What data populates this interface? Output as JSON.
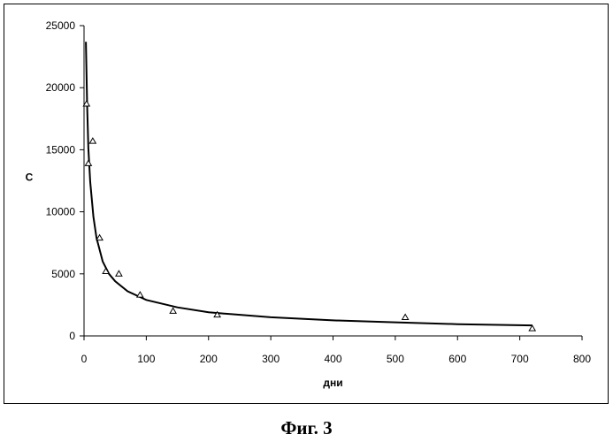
{
  "chart_data": {
    "type": "scatter",
    "xlabel": "дни",
    "ylabel": "С",
    "xlim": [
      0,
      800
    ],
    "ylim": [
      0,
      25000
    ],
    "xticks": [
      0,
      100,
      200,
      300,
      400,
      500,
      600,
      700,
      800
    ],
    "yticks": [
      0,
      5000,
      10000,
      15000,
      20000,
      25000
    ],
    "grid": false,
    "series": [
      {
        "type": "scatter",
        "marker": "triangle",
        "points": [
          {
            "x": 4,
            "y": 18700
          },
          {
            "x": 7,
            "y": 13900
          },
          {
            "x": 14,
            "y": 15700
          },
          {
            "x": 25,
            "y": 7900
          },
          {
            "x": 35,
            "y": 5200
          },
          {
            "x": 56,
            "y": 5000
          },
          {
            "x": 90,
            "y": 3300
          },
          {
            "x": 143,
            "y": 2000
          },
          {
            "x": 214,
            "y": 1700
          },
          {
            "x": 516,
            "y": 1500
          },
          {
            "x": 720,
            "y": 600
          }
        ]
      },
      {
        "type": "line",
        "points": [
          {
            "x": 3,
            "y": 23700
          },
          {
            "x": 5,
            "y": 18600
          },
          {
            "x": 7,
            "y": 15100
          },
          {
            "x": 10,
            "y": 12400
          },
          {
            "x": 15,
            "y": 9600
          },
          {
            "x": 20,
            "y": 7900
          },
          {
            "x": 30,
            "y": 6000
          },
          {
            "x": 40,
            "y": 5000
          },
          {
            "x": 50,
            "y": 4400
          },
          {
            "x": 70,
            "y": 3600
          },
          {
            "x": 100,
            "y": 2900
          },
          {
            "x": 150,
            "y": 2300
          },
          {
            "x": 200,
            "y": 1900
          },
          {
            "x": 300,
            "y": 1500
          },
          {
            "x": 400,
            "y": 1250
          },
          {
            "x": 500,
            "y": 1100
          },
          {
            "x": 600,
            "y": 950
          },
          {
            "x": 720,
            "y": 850
          }
        ]
      }
    ]
  },
  "caption": "Фиг. 3"
}
